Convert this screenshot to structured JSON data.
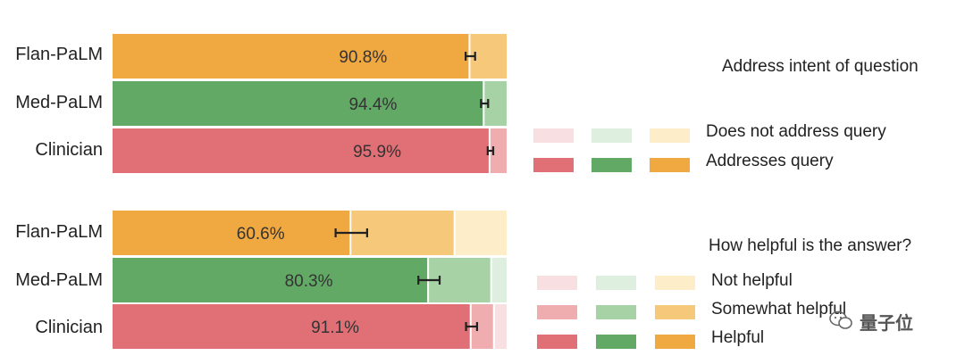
{
  "chart_data": [
    {
      "type": "bar",
      "orientation": "horizontal",
      "stacked": true,
      "title": "Address intent of question",
      "categories": [
        "Flan-PaLM",
        "Med-PaLM",
        "Clinician"
      ],
      "xlim": [
        0,
        100
      ],
      "series": [
        {
          "name": "Addresses query",
          "values": [
            90.8,
            94.4,
            95.9
          ],
          "labels": [
            "90.8%",
            "94.4%",
            "95.9%"
          ],
          "error": [
            1.2,
            0.9,
            0.7
          ]
        },
        {
          "name": "Does not address query",
          "values": [
            9.2,
            5.6,
            4.1
          ]
        }
      ],
      "legend_position": "right",
      "grid": false
    },
    {
      "type": "bar",
      "orientation": "horizontal",
      "stacked": true,
      "title": "How helpful is the answer?",
      "categories": [
        "Flan-PaLM",
        "Med-PaLM",
        "Clinician"
      ],
      "xlim": [
        0,
        100
      ],
      "series": [
        {
          "name": "Helpful",
          "values": [
            60.6,
            80.3,
            91.1
          ],
          "labels": [
            "60.6%",
            "80.3%",
            "91.1%"
          ],
          "error": [
            4.0,
            2.7,
            1.4
          ]
        },
        {
          "name": "Somewhat helpful",
          "values": [
            26.4,
            16.0,
            5.9
          ]
        },
        {
          "name": "Not helpful",
          "values": [
            13.0,
            3.7,
            3.0
          ]
        }
      ],
      "legend_position": "right",
      "grid": false
    }
  ],
  "colors": {
    "Flan-PaLM": [
      "#f0a840",
      "#f5c87a",
      "#fdedc8"
    ],
    "Med-PaLM": [
      "#63a966",
      "#a6d2a6",
      "#deeedf"
    ],
    "Clinician": [
      "#e17076",
      "#f0adb0",
      "#f8e0e2"
    ]
  },
  "watermark": "量子位"
}
